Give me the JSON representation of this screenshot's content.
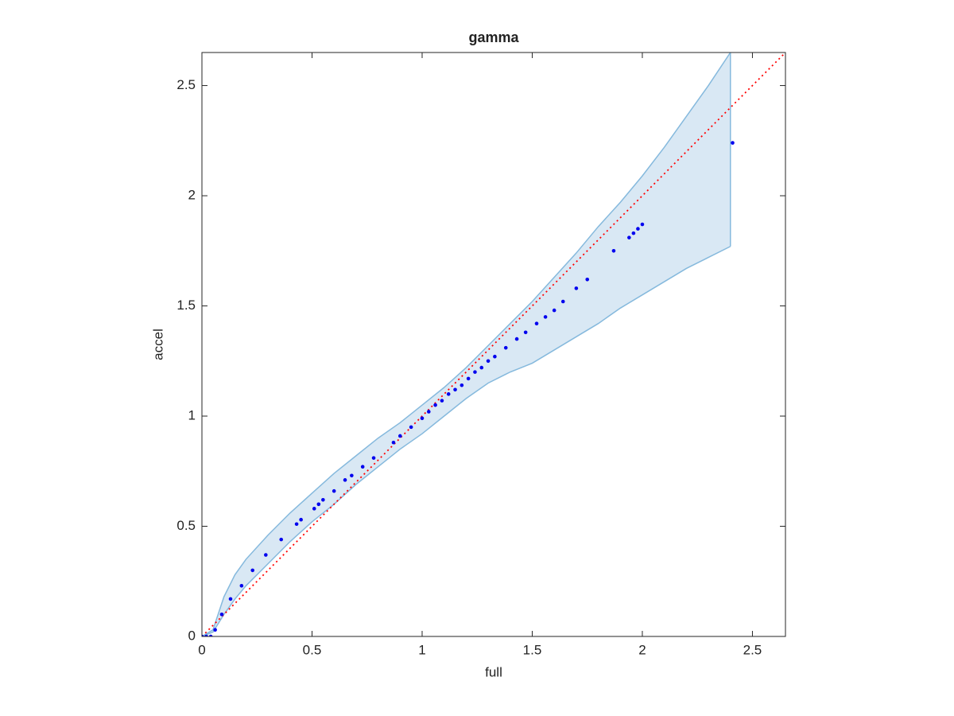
{
  "chart_data": {
    "type": "scatter",
    "title": "gamma",
    "x_label": "full",
    "y_label": "accel",
    "xlim": [
      0,
      2.65
    ],
    "ylim": [
      0,
      2.65
    ],
    "xticks": [
      0,
      0.5,
      1,
      1.5,
      2,
      2.5
    ],
    "yticks": [
      0,
      0.5,
      1,
      1.5,
      2,
      2.5
    ],
    "color": "#0000ee",
    "x": [
      0,
      0.02,
      0.04,
      0.06,
      0.09,
      0.13,
      0.18,
      0.23,
      0.29,
      0.36,
      0.43,
      0.45,
      0.51,
      0.53,
      0.55,
      0.6,
      0.65,
      0.68,
      0.73,
      0.78,
      0.87,
      0.9,
      0.95,
      1.0,
      1.03,
      1.06,
      1.09,
      1.12,
      1.15,
      1.18,
      1.21,
      1.24,
      1.27,
      1.3,
      1.33,
      1.38,
      1.43,
      1.47,
      1.52,
      1.56,
      1.6,
      1.64,
      1.7,
      1.75,
      1.87,
      1.94,
      1.96,
      1.98,
      2.0,
      2.41
    ],
    "values": [
      0,
      0,
      0,
      0.03,
      0.1,
      0.17,
      0.23,
      0.3,
      0.37,
      0.44,
      0.51,
      0.53,
      0.58,
      0.6,
      0.62,
      0.66,
      0.71,
      0.73,
      0.77,
      0.81,
      0.88,
      0.91,
      0.95,
      0.99,
      1.02,
      1.05,
      1.07,
      1.1,
      1.12,
      1.14,
      1.17,
      1.2,
      1.22,
      1.25,
      1.27,
      1.31,
      1.35,
      1.38,
      1.42,
      1.45,
      1.48,
      1.52,
      1.58,
      1.62,
      1.75,
      1.81,
      1.83,
      1.85,
      1.87,
      2.24
    ],
    "band": {
      "color": "#d9e8f4",
      "edge_color": "#85b9dd",
      "x": [
        0,
        0.05,
        0.1,
        0.15,
        0.2,
        0.3,
        0.4,
        0.5,
        0.6,
        0.7,
        0.8,
        0.9,
        1.0,
        1.1,
        1.2,
        1.3,
        1.4,
        1.5,
        1.6,
        1.7,
        1.8,
        1.9,
        2.0,
        2.1,
        2.2,
        2.3,
        2.4
      ],
      "upper": [
        0,
        0.03,
        0.18,
        0.28,
        0.35,
        0.46,
        0.56,
        0.65,
        0.74,
        0.82,
        0.9,
        0.97,
        1.05,
        1.13,
        1.22,
        1.32,
        1.42,
        1.52,
        1.63,
        1.74,
        1.86,
        1.97,
        2.09,
        2.22,
        2.36,
        2.5,
        2.65
      ],
      "lower": [
        0,
        0.02,
        0.1,
        0.17,
        0.23,
        0.33,
        0.43,
        0.52,
        0.6,
        0.69,
        0.77,
        0.85,
        0.92,
        1.0,
        1.08,
        1.15,
        1.2,
        1.24,
        1.3,
        1.36,
        1.42,
        1.49,
        1.55,
        1.61,
        1.67,
        1.72,
        1.77
      ]
    },
    "reference_line": {
      "color": "#ff0000",
      "x": [
        0,
        2.65
      ],
      "values": [
        0,
        2.65
      ]
    }
  }
}
